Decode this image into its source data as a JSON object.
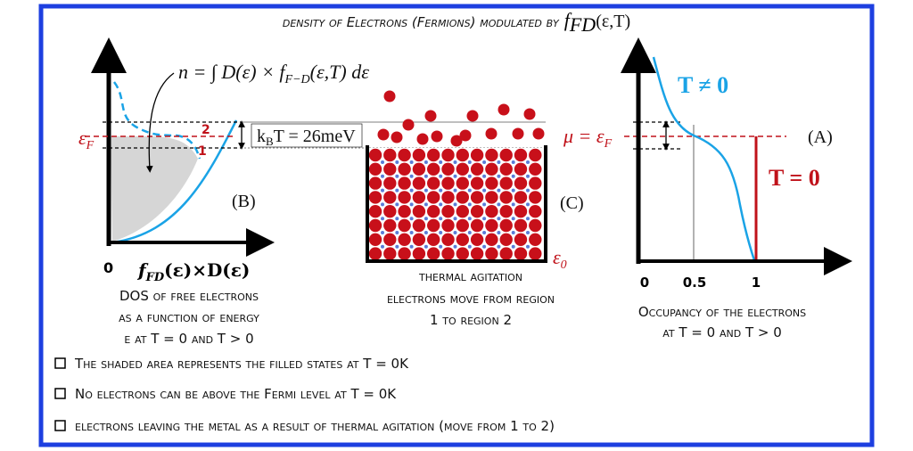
{
  "title": {
    "text": "density of Electrons (Fermions) modulated by",
    "f": "f",
    "sub": "FD",
    "args": "(ε,T)"
  },
  "panel_b": {
    "formula": {
      "lhs": "n = ∫ D(ε) × f",
      "sub": "F−D",
      "rhs": "(ε,T) dε"
    },
    "fermi": {
      "symbol": "ε",
      "sub": "F"
    },
    "region_2": "2",
    "region_1": "1",
    "label": "(B)",
    "origin": "0",
    "x_label": {
      "f": "f",
      "sub": "FD",
      "rest": "(ε)×D(ε)"
    },
    "caption": [
      "DOS of free electrons",
      "as a function of energy",
      "ε at T = 0 and T > 0"
    ]
  },
  "panel_c": {
    "kbt": {
      "k": "k",
      "sub": "B",
      "rest": "T = 26meV"
    },
    "mu": {
      "lhs": "μ = ε",
      "sub": "F"
    },
    "label": "(C)",
    "eps0": {
      "symbol": "ε",
      "sub": "0"
    },
    "caption": [
      "thermal agitation",
      "electrons move from region",
      "1 to region 2"
    ]
  },
  "panel_a": {
    "t_nonzero": "T ≠ 0",
    "t_zero": "T = 0",
    "label": "(A)",
    "ticks": [
      "0",
      "0.5",
      "1"
    ],
    "caption": [
      "Occupancy of the electrons",
      "at T = 0 and T > 0"
    ]
  },
  "bullets": [
    "The shaded area represents the filled states at T = 0K",
    "No electrons can be above the Fermi level at T = 0K",
    "electrons leaving the metal as a result of thermal agitation (move from 1 to 2)"
  ]
}
